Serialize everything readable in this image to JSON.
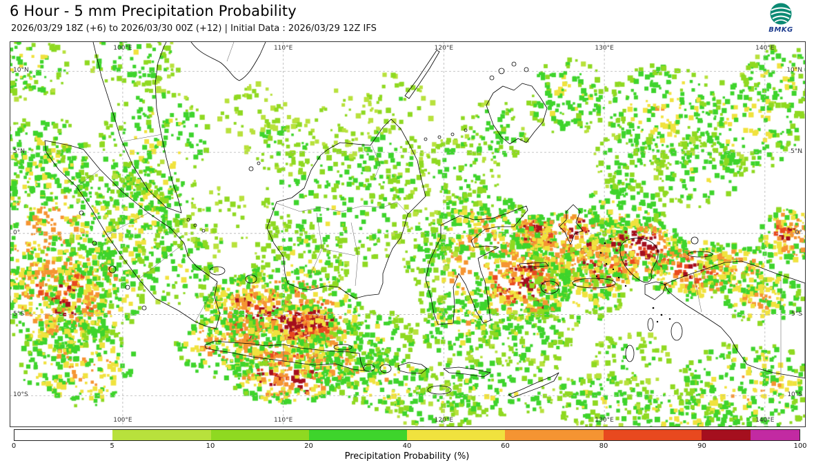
{
  "header": {
    "title": "6 Hour - 5 mm Precipitation Probability",
    "subtitle": "2026/03/29 18Z (+6) to 2026/03/30 00Z (+12) | Initial Data : 2026/03/29 12Z IFS",
    "logo_text": "BMKG"
  },
  "map": {
    "lat_ticks": [
      {
        "label": "10°N",
        "deg": 10
      },
      {
        "label": "5°N",
        "deg": 5
      },
      {
        "label": "0°",
        "deg": 0
      },
      {
        "label": "5°S",
        "deg": -5
      },
      {
        "label": "10°S",
        "deg": -10
      }
    ],
    "lon_ticks": [
      {
        "label": "100°E",
        "deg": 100
      },
      {
        "label": "110°E",
        "deg": 110
      },
      {
        "label": "120°E",
        "deg": 120
      },
      {
        "label": "130°E",
        "deg": 130
      },
      {
        "label": "140°E",
        "deg": 140
      }
    ]
  },
  "colorbar": {
    "title": "Precipitation Probability (%)",
    "ticks": [
      "0",
      "5",
      "10",
      "20",
      "40",
      "60",
      "80",
      "90",
      "100"
    ],
    "segments": [
      {
        "color": "#ffffff",
        "width": 1
      },
      {
        "color": "#b8e13c",
        "width": 1
      },
      {
        "color": "#8fd921",
        "width": 1
      },
      {
        "color": "#3ed42c",
        "width": 1
      },
      {
        "color": "#f0e23e",
        "width": 1
      },
      {
        "color": "#f59432",
        "width": 1
      },
      {
        "color": "#e8491f",
        "width": 1
      },
      {
        "color": "#a50f1e",
        "width": 0.5
      },
      {
        "color": "#c22aa2",
        "width": 0.5
      }
    ]
  }
}
